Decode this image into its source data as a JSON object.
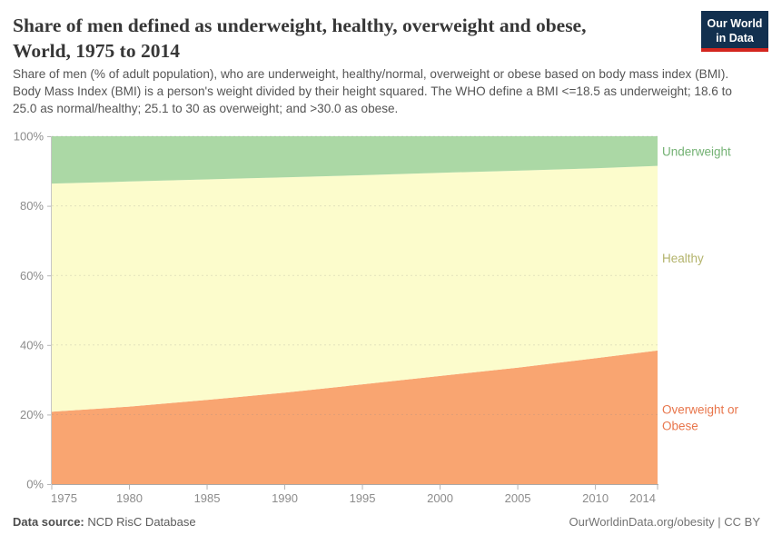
{
  "header": {
    "title_line1": "Share of men defined as underweight, healthy, overweight and obese,",
    "title_line2": "World, 1975 to 2014",
    "subtitle": "Share of men (% of adult population), who are underweight, healthy/normal, overweight or obese based on body mass index (BMI). Body Mass Index (BMI) is a person's weight divided by their height squared. The WHO define a BMI <=18.5 as underweight; 18.6 to 25.0 as normal/healthy; 25.1 to 30 as overweight; and >30.0 as obese.",
    "logo": {
      "line1": "Our World",
      "line2": "in Data",
      "bg_color": "#12304f",
      "stripe_color": "#d3261f"
    }
  },
  "chart_data": {
    "type": "area",
    "stacked": true,
    "title": "Share of men defined as underweight, healthy, overweight and obese, World, 1975 to 2014",
    "xlabel": "",
    "ylabel": "",
    "x": [
      1975,
      1980,
      1985,
      1990,
      1995,
      2000,
      2005,
      2010,
      2014
    ],
    "series": [
      {
        "name": "Overweight or Obese",
        "slug": "overweight-or-obese",
        "values": [
          20.8,
          22.3,
          24.2,
          26.3,
          28.7,
          31.1,
          33.5,
          36.2,
          38.4
        ],
        "fill": "#f9a571",
        "label_color": "#e8764c",
        "label_lines": [
          "Overweight or",
          "Obese"
        ]
      },
      {
        "name": "Healthy",
        "slug": "healthy",
        "values": [
          65.6,
          64.7,
          63.4,
          61.9,
          60.1,
          58.4,
          56.6,
          54.6,
          53.1
        ],
        "fill": "#fcfccc",
        "label_color": "#b3b36b",
        "label_lines": [
          "Healthy"
        ]
      },
      {
        "name": "Underweight",
        "slug": "underweight",
        "values": [
          13.6,
          13.0,
          12.4,
          11.8,
          11.2,
          10.5,
          9.9,
          9.2,
          8.5
        ],
        "fill": "#abd8a5",
        "label_color": "#74b274",
        "label_lines": [
          "Underweight"
        ]
      }
    ],
    "ylim": [
      0,
      100
    ],
    "yticks": [
      0,
      20,
      40,
      60,
      80,
      100
    ],
    "ytick_labels": [
      "0%",
      "20%",
      "40%",
      "60%",
      "80%",
      "100%"
    ],
    "xticks": [
      1975,
      1980,
      1985,
      1990,
      1995,
      2000,
      2005,
      2010,
      2014
    ],
    "grid": "horizontal-dashed",
    "legend_position": "right-of-plot"
  },
  "footer": {
    "datasource_label": "Data source:",
    "datasource_value": "NCD RisC Database",
    "credit": "OurWorldinData.org/obesity | CC BY"
  }
}
